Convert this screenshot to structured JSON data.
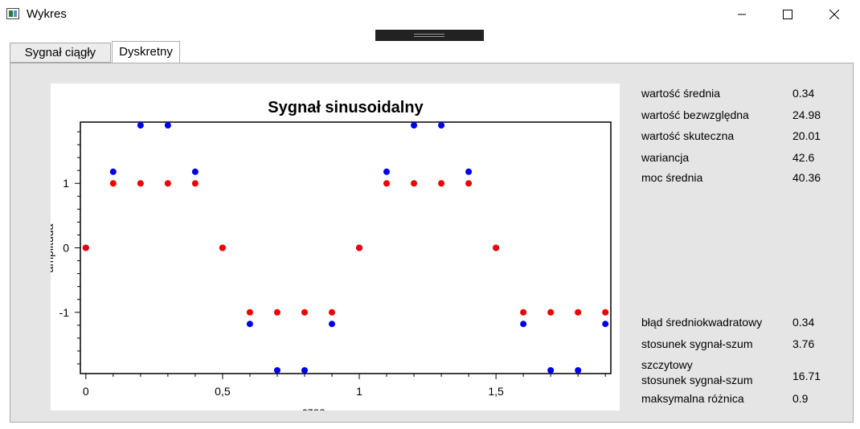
{
  "window": {
    "title": "Wykres",
    "icon": "chart-app-icon"
  },
  "tabs": [
    {
      "label": "Sygnał ciągły"
    },
    {
      "label": "Dyskretny"
    }
  ],
  "active_tab": "Dyskretny",
  "stats_top": [
    {
      "label": "wartość średnia",
      "value": "0.34"
    },
    {
      "label": "wartość bezwzględna",
      "value": "24.98"
    },
    {
      "label": "wartość skuteczna",
      "value": "20.01"
    },
    {
      "label": "wariancja",
      "value": "42.6"
    },
    {
      "label": "moc średnia",
      "value": "40.36"
    }
  ],
  "stats_bottom": [
    {
      "label": "błąd średniokwadratowy",
      "value": "0.34"
    },
    {
      "label": "stosunek sygnał-szum",
      "value": "3.76"
    },
    {
      "label": "szczytowy",
      "label2": "stosunek sygnał-szum",
      "value": "16.71"
    },
    {
      "label": "maksymalna różnica",
      "value": "0.9"
    }
  ],
  "colors": {
    "series_blue": "#0000ee",
    "series_red": "#ee0000"
  },
  "chart_data": {
    "type": "scatter",
    "title": "Sygnał sinusoidalny",
    "xlabel": "czas",
    "ylabel": "amplituda",
    "xlim": [
      -0.02,
      1.92
    ],
    "ylim": [
      -1.95,
      1.95
    ],
    "x_ticks": [
      "0",
      "0,5",
      "1",
      "1,5"
    ],
    "y_ticks": [
      "-1",
      "0",
      "1"
    ],
    "grid": false,
    "series": [
      {
        "color": "#0000ee",
        "x": [
          0,
          0.1,
          0.2,
          0.3,
          0.4,
          0.5,
          0.6,
          0.7,
          0.8,
          0.9,
          1.0,
          1.1,
          1.2,
          1.3,
          1.4,
          1.5,
          1.6,
          1.7,
          1.8,
          1.9
        ],
        "y": [
          0,
          1.18,
          1.9,
          1.9,
          1.18,
          0,
          -1.18,
          -1.9,
          -1.9,
          -1.18,
          0,
          1.18,
          1.9,
          1.9,
          1.18,
          0,
          -1.18,
          -1.9,
          -1.9,
          -1.18
        ]
      },
      {
        "color": "#ee0000",
        "x": [
          0,
          0.1,
          0.2,
          0.3,
          0.4,
          0.5,
          0.6,
          0.7,
          0.8,
          0.9,
          1.0,
          1.1,
          1.2,
          1.3,
          1.4,
          1.5,
          1.6,
          1.7,
          1.8,
          1.9
        ],
        "y": [
          0,
          1,
          1,
          1,
          1,
          0,
          -1,
          -1,
          -1,
          -1,
          0,
          1,
          1,
          1,
          1,
          0,
          -1,
          -1,
          -1,
          -1
        ]
      }
    ]
  }
}
